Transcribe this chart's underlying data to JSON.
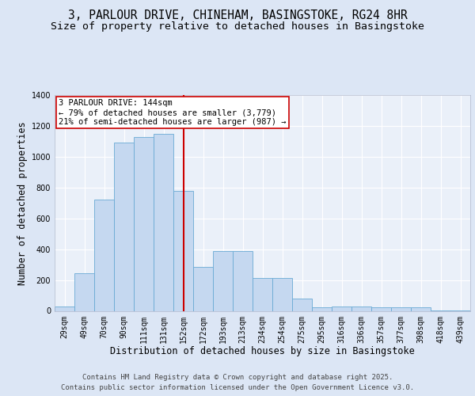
{
  "title_line1": "3, PARLOUR DRIVE, CHINEHAM, BASINGSTOKE, RG24 8HR",
  "title_line2": "Size of property relative to detached houses in Basingstoke",
  "xlabel": "Distribution of detached houses by size in Basingstoke",
  "ylabel": "Number of detached properties",
  "categories": [
    "29sqm",
    "49sqm",
    "70sqm",
    "90sqm",
    "111sqm",
    "131sqm",
    "152sqm",
    "172sqm",
    "193sqm",
    "213sqm",
    "234sqm",
    "254sqm",
    "275sqm",
    "295sqm",
    "316sqm",
    "336sqm",
    "357sqm",
    "377sqm",
    "398sqm",
    "418sqm",
    "439sqm"
  ],
  "bar_values": [
    30,
    245,
    720,
    1090,
    1130,
    1150,
    780,
    285,
    390,
    390,
    215,
    215,
    80,
    25,
    30,
    30,
    25,
    25,
    25,
    5,
    5
  ],
  "bar_color": "#c5d8f0",
  "bar_edgecolor": "#6aaad4",
  "vline_x": 6.0,
  "vline_color": "#cc0000",
  "annotation_text": "3 PARLOUR DRIVE: 144sqm\n← 79% of detached houses are smaller (3,779)\n21% of semi-detached houses are larger (987) →",
  "annotation_box_facecolor": "#ffffff",
  "annotation_box_edgecolor": "#cc0000",
  "ylim": [
    0,
    1400
  ],
  "yticks": [
    0,
    200,
    400,
    600,
    800,
    1000,
    1200,
    1400
  ],
  "bg_color": "#dce6f5",
  "plot_bg_color": "#eaf0f9",
  "footer_line1": "Contains HM Land Registry data © Crown copyright and database right 2025.",
  "footer_line2": "Contains public sector information licensed under the Open Government Licence v3.0.",
  "title_fontsize": 10.5,
  "subtitle_fontsize": 9.5,
  "ylabel_fontsize": 8.5,
  "xlabel_fontsize": 8.5,
  "tick_fontsize": 7,
  "annotation_fontsize": 7.5,
  "footer_fontsize": 6.5
}
